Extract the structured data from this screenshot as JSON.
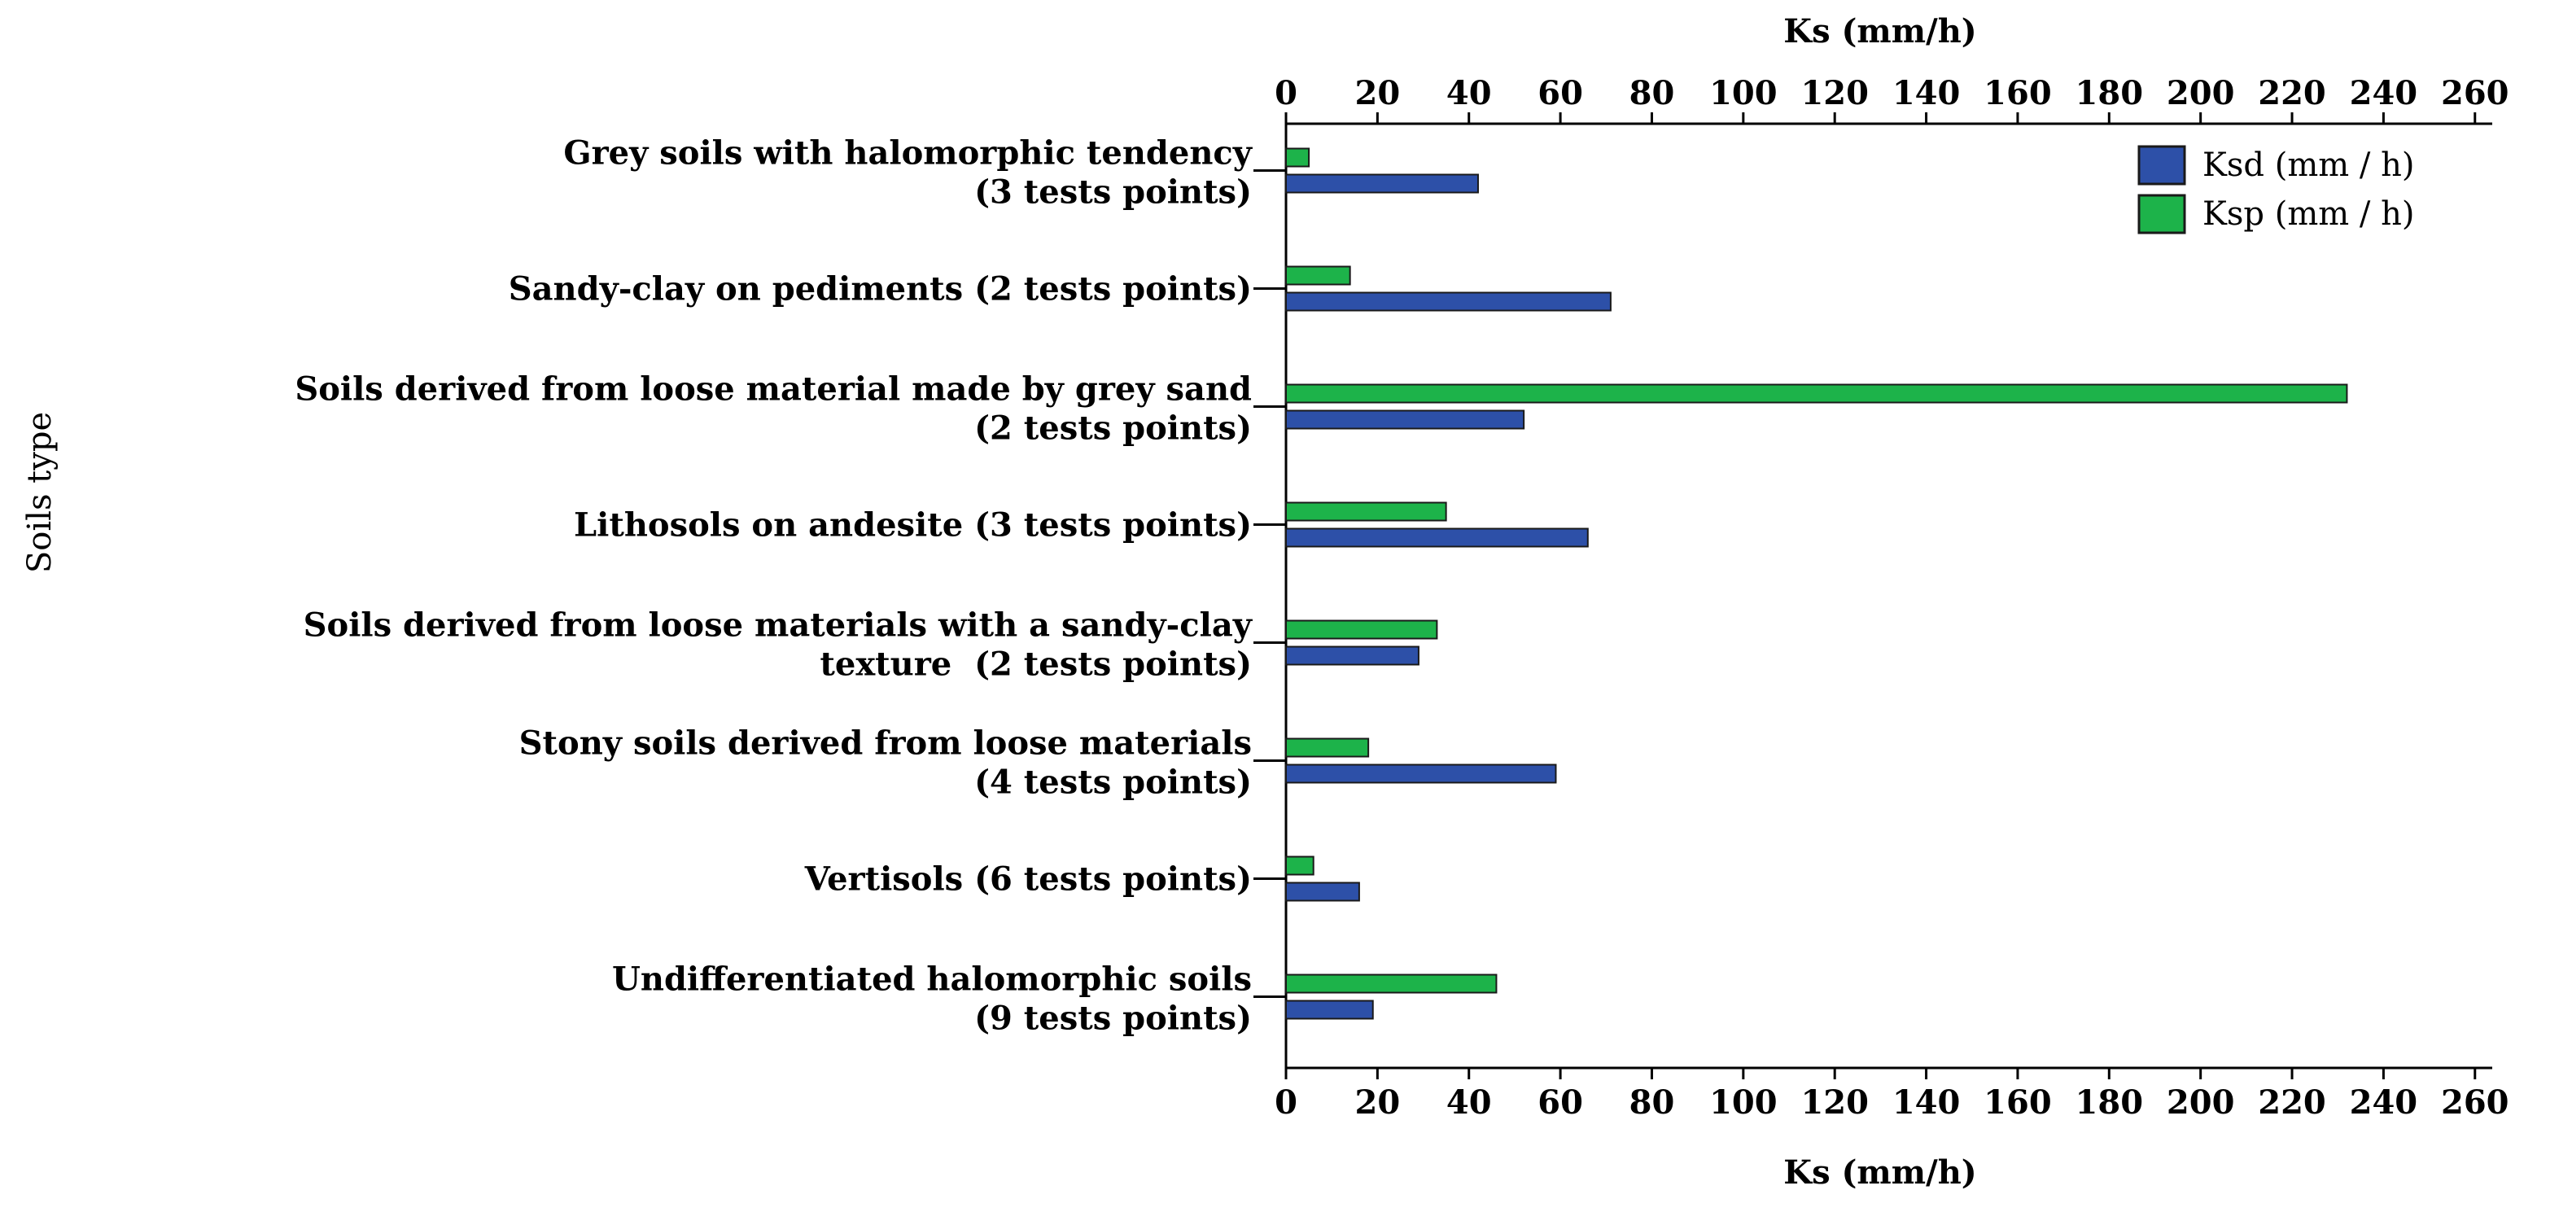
{
  "chart_data": {
    "type": "bar",
    "orientation": "horizontal",
    "title": "",
    "xlabel": "Ks (mm/h)",
    "xlabel_top": "Ks (mm/h)",
    "ylabel": "Soils type",
    "xlim": [
      0,
      262
    ],
    "xticks": [
      0,
      20,
      40,
      60,
      80,
      100,
      120,
      140,
      160,
      180,
      200,
      220,
      240,
      260
    ],
    "grid": false,
    "legend_position": "top-right",
    "categories": [
      [
        "Grey soils with halomorphic tendency",
        "(3 tests points)"
      ],
      [
        "Sandy-clay on pediments (2 tests points)"
      ],
      [
        "Soils derived from loose material made by grey sand",
        "(2 tests points)"
      ],
      [
        "Lithosols on andesite (3 tests points)"
      ],
      [
        "Soils derived from loose materials with a sandy-clay",
        "texture  (2 tests points)"
      ],
      [
        "Stony soils derived from loose materials",
        "(4 tests points)"
      ],
      [
        "Vertisols (6 tests points)"
      ],
      [
        "Undifferentiated halomorphic soils",
        "(9 tests points)"
      ]
    ],
    "series": [
      {
        "name": "Ksp (mm / h)",
        "color": "#1db34a",
        "values": [
          5,
          14,
          232,
          35,
          33,
          18,
          6,
          46
        ]
      },
      {
        "name": "Ksd (mm / h)",
        "color": "#2d50a8",
        "values": [
          42,
          71,
          52,
          66,
          29,
          59,
          16,
          19
        ]
      }
    ],
    "legend_order": [
      "Ksd (mm / h)",
      "Ksp (mm / h)"
    ]
  }
}
